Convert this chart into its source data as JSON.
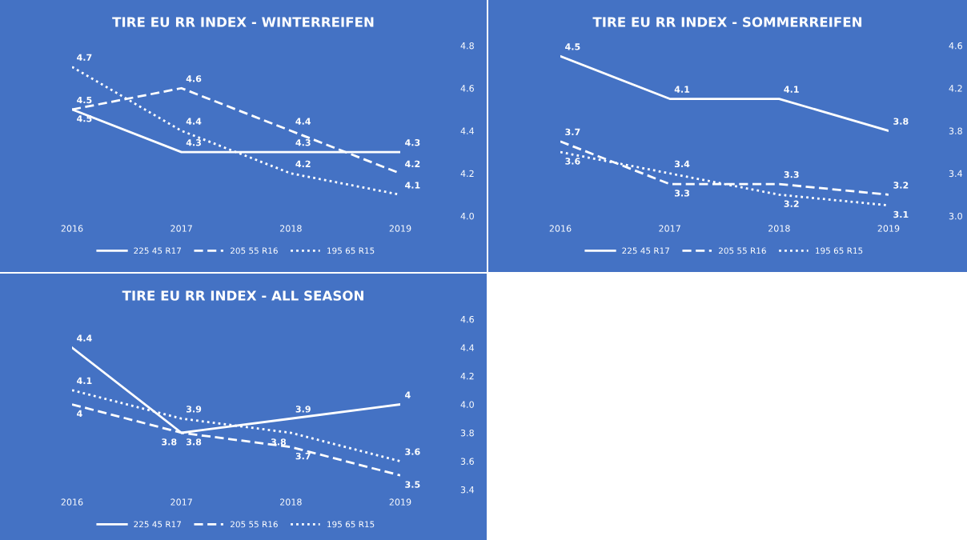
{
  "chart_data": [
    {
      "type": "line",
      "title": "TIRE EU RR INDEX - WINTERREIFEN",
      "categories": [
        "2016",
        "2017",
        "2018",
        "2019"
      ],
      "ylim": [
        4.0,
        4.8
      ],
      "yticks": [
        {
          "value": 4.0,
          "label": "4.0"
        },
        {
          "value": 4.2,
          "label": "4.2"
        },
        {
          "value": 4.4,
          "label": "4.4"
        },
        {
          "value": 4.6,
          "label": "4.6"
        },
        {
          "value": 4.8,
          "label": "4.8"
        }
      ],
      "data_labels": true,
      "legend": "bottom",
      "grid": false,
      "marker": "none",
      "series": [
        {
          "name": "225 45 R17",
          "color": "#ffffff",
          "line_style": "solid",
          "values": [
            4.5,
            4.3,
            4.3,
            4.3
          ]
        },
        {
          "name": "205 55 R16",
          "color": "#ffffff",
          "line_style": "dashed",
          "values": [
            4.5,
            4.6,
            4.4,
            4.2
          ]
        },
        {
          "name": "195 65 R15",
          "color": "#ffffff",
          "line_style": "dotted",
          "values": [
            4.7,
            4.4,
            4.2,
            4.1
          ]
        }
      ]
    },
    {
      "type": "line",
      "title": "TIRE EU RR INDEX - SOMMERREIFEN",
      "categories": [
        "2016",
        "2017",
        "2018",
        "2019"
      ],
      "ylim": [
        3.0,
        4.6
      ],
      "yticks": [
        {
          "value": 3.0,
          "label": "3.0"
        },
        3.4,
        3.8,
        4.2,
        4.6
      ],
      "data_labels": true,
      "legend": "bottom",
      "grid": false,
      "marker": "none",
      "series": [
        {
          "name": "225 45 R17",
          "color": "#ffffff",
          "line_style": "solid",
          "values": [
            4.5,
            4.1,
            4.1,
            3.8
          ]
        },
        {
          "name": "205 55 R16",
          "color": "#ffffff",
          "line_style": "dashed",
          "values": [
            3.7,
            3.3,
            3.3,
            3.2
          ]
        },
        {
          "name": "195 65 R15",
          "color": "#ffffff",
          "line_style": "dotted",
          "values": [
            3.6,
            3.4,
            3.2,
            3.1
          ]
        }
      ]
    },
    {
      "type": "line",
      "title": "TIRE EU RR INDEX - ALL SEASON",
      "categories": [
        "2016",
        "2017",
        "2018",
        "2019"
      ],
      "ylim": [
        3.4,
        4.6
      ],
      "yticks": [
        3.4,
        3.6,
        3.8,
        {
          "value": 4.0,
          "label": "4.0"
        },
        4.2,
        4.4,
        4.6
      ],
      "data_labels": true,
      "legend": "bottom",
      "grid": false,
      "marker": "none",
      "series": [
        {
          "name": "225 45 R17",
          "color": "#ffffff",
          "line_style": "solid",
          "values": [
            4.4,
            3.8,
            3.9,
            4
          ]
        },
        {
          "name": "205 55 R16",
          "color": "#ffffff",
          "line_style": "dashed",
          "values": [
            4,
            3.8,
            3.7,
            3.5
          ]
        },
        {
          "name": "195 65 R15",
          "color": "#ffffff",
          "line_style": "dotted",
          "values": [
            4.1,
            3.9,
            3.8,
            3.6
          ]
        }
      ]
    }
  ]
}
